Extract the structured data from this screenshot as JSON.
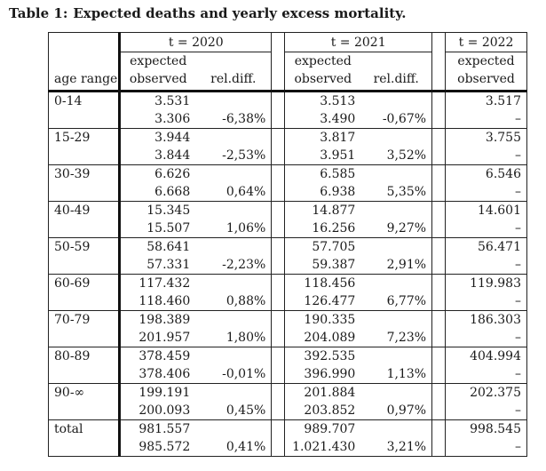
{
  "caption": {
    "label": "Table 1:",
    "text": "Expected deaths and yearly excess mortality."
  },
  "header": {
    "years": [
      "t = 2020",
      "t = 2021",
      "t = 2022"
    ],
    "expected_label": "expected",
    "observed_label": "observed",
    "age_range_label": "age range",
    "reldiff_label": "rel.diff."
  },
  "rows": [
    {
      "age": "0-14",
      "y2020": {
        "expected": "3.531",
        "observed": "3.306",
        "reldiff": "-6,38%"
      },
      "y2021": {
        "expected": "3.513",
        "observed": "3.490",
        "reldiff": "-0,67%"
      },
      "y2022": {
        "expected": "3.517",
        "observed": "–"
      }
    },
    {
      "age": "15-29",
      "y2020": {
        "expected": "3.944",
        "observed": "3.844",
        "reldiff": "-2,53%"
      },
      "y2021": {
        "expected": "3.817",
        "observed": "3.951",
        "reldiff": "3,52%"
      },
      "y2022": {
        "expected": "3.755",
        "observed": "–"
      }
    },
    {
      "age": "30-39",
      "y2020": {
        "expected": "6.626",
        "observed": "6.668",
        "reldiff": "0,64%"
      },
      "y2021": {
        "expected": "6.585",
        "observed": "6.938",
        "reldiff": "5,35%"
      },
      "y2022": {
        "expected": "6.546",
        "observed": "–"
      }
    },
    {
      "age": "40-49",
      "y2020": {
        "expected": "15.345",
        "observed": "15.507",
        "reldiff": "1,06%"
      },
      "y2021": {
        "expected": "14.877",
        "observed": "16.256",
        "reldiff": "9,27%"
      },
      "y2022": {
        "expected": "14.601",
        "observed": "–"
      }
    },
    {
      "age": "50-59",
      "y2020": {
        "expected": "58.641",
        "observed": "57.331",
        "reldiff": "-2,23%"
      },
      "y2021": {
        "expected": "57.705",
        "observed": "59.387",
        "reldiff": "2,91%"
      },
      "y2022": {
        "expected": "56.471",
        "observed": "–"
      }
    },
    {
      "age": "60-69",
      "y2020": {
        "expected": "117.432",
        "observed": "118.460",
        "reldiff": "0,88%"
      },
      "y2021": {
        "expected": "118.456",
        "observed": "126.477",
        "reldiff": "6,77%"
      },
      "y2022": {
        "expected": "119.983",
        "observed": "–"
      }
    },
    {
      "age": "70-79",
      "y2020": {
        "expected": "198.389",
        "observed": "201.957",
        "reldiff": "1,80%"
      },
      "y2021": {
        "expected": "190.335",
        "observed": "204.089",
        "reldiff": "7,23%"
      },
      "y2022": {
        "expected": "186.303",
        "observed": "–"
      }
    },
    {
      "age": "80-89",
      "y2020": {
        "expected": "378.459",
        "observed": "378.406",
        "reldiff": "-0,01%"
      },
      "y2021": {
        "expected": "392.535",
        "observed": "396.990",
        "reldiff": "1,13%"
      },
      "y2022": {
        "expected": "404.994",
        "observed": "–"
      }
    },
    {
      "age": "90-∞",
      "y2020": {
        "expected": "199.191",
        "observed": "200.093",
        "reldiff": "0,45%"
      },
      "y2021": {
        "expected": "201.884",
        "observed": "203.852",
        "reldiff": "0,97%"
      },
      "y2022": {
        "expected": "202.375",
        "observed": "–"
      }
    },
    {
      "age": "total",
      "y2020": {
        "expected": "981.557",
        "observed": "985.572",
        "reldiff": "0,41%"
      },
      "y2021": {
        "expected": "989.707",
        "observed": "1.021.430",
        "reldiff": "3,21%"
      },
      "y2022": {
        "expected": "998.545",
        "observed": "–"
      }
    }
  ]
}
